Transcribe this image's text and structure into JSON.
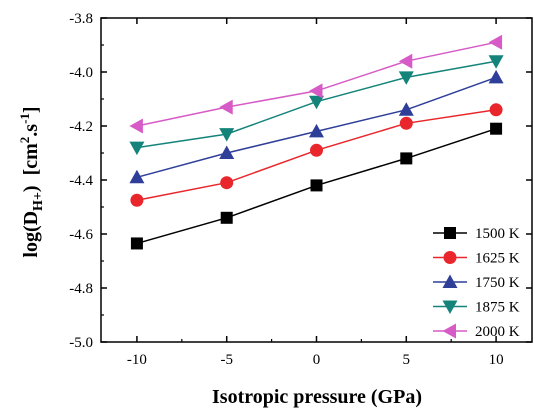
{
  "chart_data": {
    "type": "line",
    "xlabel": "Isotropic pressure (GPa)",
    "ylabel": {
      "main": "log(D",
      "subscript": "H+",
      "close": ")",
      "units_open": "[cm",
      "units_sup1": "2",
      "units_mid": ".s",
      "units_sup2": "-1",
      "units_close": "]"
    },
    "x": [
      -10,
      -5,
      0,
      5,
      10
    ],
    "xticks": [
      -10,
      -5,
      0,
      5,
      10
    ],
    "xtick_labels": [
      "-10",
      "-5",
      "0",
      "5",
      "10"
    ],
    "xlim": [
      -12,
      12
    ],
    "yticks": [
      -5.0,
      -4.8,
      -4.6,
      -4.4,
      -4.2,
      -4.0,
      -3.8
    ],
    "ytick_labels": [
      "-5.0",
      "-4.8",
      "-4.6",
      "-4.4",
      "-4.2",
      "-4.0",
      "-3.8"
    ],
    "ylim": [
      -5.0,
      -3.8
    ],
    "grid": false,
    "legend_position": "bottom-right",
    "series": [
      {
        "name": "1500 K",
        "color": "#000000",
        "marker": "square",
        "values": [
          -4.635,
          -4.54,
          -4.42,
          -4.32,
          -4.21
        ]
      },
      {
        "name": "1625 K",
        "color": "#e8262b",
        "marker": "circle",
        "values": [
          -4.475,
          -4.41,
          -4.29,
          -4.19,
          -4.14
        ]
      },
      {
        "name": "1750 K",
        "color": "#2f3f99",
        "marker": "triangle-up",
        "values": [
          -4.39,
          -4.3,
          -4.22,
          -4.14,
          -4.02
        ]
      },
      {
        "name": "1875 K",
        "color": "#14847a",
        "marker": "triangle-down",
        "values": [
          -4.28,
          -4.23,
          -4.11,
          -4.02,
          -3.96
        ]
      },
      {
        "name": "2000 K",
        "color": "#d65bc6",
        "marker": "triangle-left",
        "values": [
          -4.2,
          -4.13,
          -4.07,
          -3.96,
          -3.89
        ]
      }
    ]
  }
}
